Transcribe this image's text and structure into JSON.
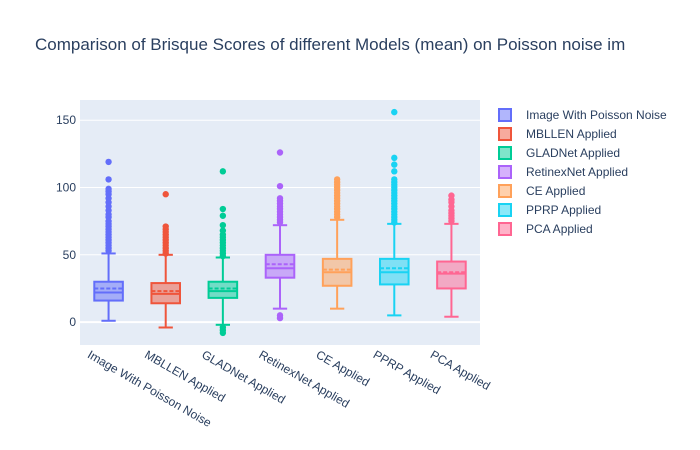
{
  "chart_data": {
    "type": "box",
    "title": "Comparison of Brisque Scores of different Models (mean) on Poisson noise im",
    "xlabel": "",
    "ylabel": "",
    "ylim": [
      -17,
      165
    ],
    "yticks": [
      0,
      50,
      100,
      150
    ],
    "grid": true,
    "legend_position": "right",
    "categories": [
      "Image With Poisson Noise",
      "MBLLEN Applied",
      "GLADNet Applied",
      "RetinexNet Applied",
      "CE Applied",
      "PPRP Applied",
      "PCA Applied"
    ],
    "series": [
      {
        "name": "Image With Poisson Noise",
        "color": "#636efa",
        "min": 1,
        "q1": 16,
        "median": 22,
        "mean": 25,
        "q3": 30,
        "max": 51,
        "outliers": [
          53,
          55,
          57,
          59,
          61,
          63,
          65,
          67,
          69,
          71,
          73,
          75,
          78,
          80,
          83,
          86,
          89,
          92,
          95,
          97,
          99,
          106,
          119
        ]
      },
      {
        "name": "MBLLEN Applied",
        "color": "#ef553b",
        "min": -4,
        "q1": 14,
        "median": 21,
        "mean": 23,
        "q3": 29,
        "max": 50,
        "outliers": [
          51,
          53,
          55,
          57,
          59,
          61,
          63,
          65,
          67,
          69,
          71,
          95
        ]
      },
      {
        "name": "GLADNet Applied",
        "color": "#00cc96",
        "min": -2,
        "q1": 18,
        "median": 23,
        "mean": 25,
        "q3": 30,
        "max": 48,
        "outliers": [
          -8,
          -6,
          -4,
          49,
          51,
          53,
          55,
          57,
          59,
          61,
          63,
          65,
          68,
          72,
          79,
          84,
          112
        ]
      },
      {
        "name": "RetinexNet Applied",
        "color": "#ab63fa",
        "min": 10,
        "q1": 33,
        "median": 40,
        "mean": 43,
        "q3": 50,
        "max": 72,
        "outliers": [
          3,
          5,
          74,
          76,
          78,
          80,
          82,
          84,
          86,
          88,
          90,
          92,
          101,
          126
        ]
      },
      {
        "name": "CE Applied",
        "color": "#ffa15a",
        "min": 10,
        "q1": 27,
        "median": 37,
        "mean": 39,
        "q3": 47,
        "max": 76,
        "outliers": [
          78,
          80,
          82,
          84,
          86,
          88,
          90,
          92,
          94,
          96,
          98,
          100,
          102,
          104,
          106
        ]
      },
      {
        "name": "PPRP Applied",
        "color": "#19d3f3",
        "min": 5,
        "q1": 28,
        "median": 37,
        "mean": 40,
        "q3": 47,
        "max": 73,
        "outliers": [
          74,
          76,
          78,
          80,
          82,
          84,
          86,
          88,
          90,
          92,
          94,
          96,
          98,
          100,
          102,
          104,
          106,
          112,
          117,
          122,
          156
        ]
      },
      {
        "name": "PCA Applied",
        "color": "#ff6692",
        "min": 4,
        "q1": 25,
        "median": 36,
        "mean": 37,
        "q3": 45,
        "max": 73,
        "outliers": [
          75,
          77,
          79,
          81,
          83,
          86,
          89,
          91,
          94
        ]
      }
    ]
  }
}
